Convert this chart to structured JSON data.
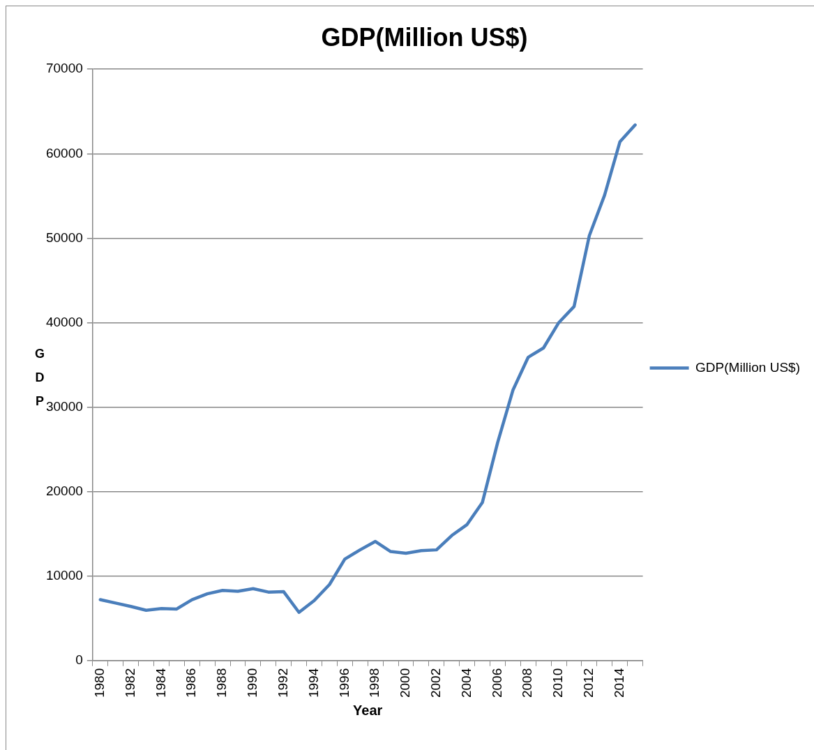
{
  "chart_data": {
    "type": "line",
    "title": "GDP(Million US$)",
    "xlabel": "Year",
    "ylabel": "GDP",
    "categories": [
      "1980",
      null,
      "1982",
      null,
      "1984",
      null,
      "1986",
      null,
      "1988",
      null,
      "1990",
      null,
      "1992",
      null,
      "1994",
      null,
      "1996",
      null,
      "1998",
      null,
      "2000",
      null,
      "2002",
      null,
      "2004",
      null,
      "2006",
      null,
      "2008",
      null,
      "2010",
      null,
      "2012",
      null,
      "2014",
      null
    ],
    "series": [
      {
        "name": "GDP(Million US$)",
        "color": "#4a7ebb",
        "values": [
          7200,
          6800,
          6400,
          5950,
          6150,
          6100,
          7200,
          7900,
          8300,
          8200,
          8500,
          8100,
          8150,
          5700,
          7100,
          9000,
          12000,
          13100,
          14100,
          12900,
          12700,
          13000,
          13100,
          14800,
          16100,
          18700,
          25800,
          32000,
          35900,
          37000,
          40000,
          41900,
          50300,
          55100,
          61400,
          63400
        ]
      }
    ],
    "ylim": [
      0,
      70000
    ],
    "yticks": [
      0,
      10000,
      20000,
      30000,
      40000,
      50000,
      60000,
      70000
    ],
    "grid": "y",
    "legend": "right",
    "marker": "none",
    "line_style": "solid"
  }
}
